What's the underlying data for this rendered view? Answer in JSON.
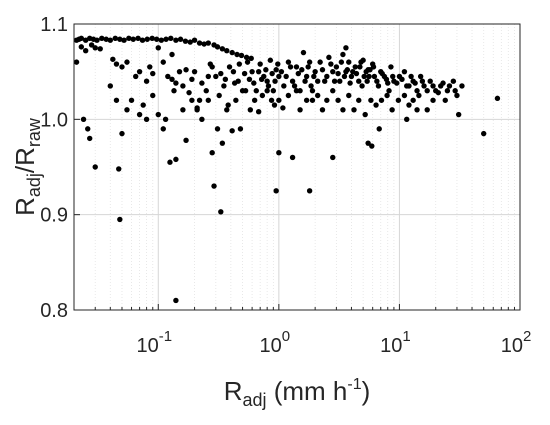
{
  "chart_data": {
    "type": "scatter",
    "title": "",
    "xlabel": {
      "base": "R",
      "sub": "adj",
      "rest": " (mm h",
      "sup": "-1",
      "close": ")"
    },
    "ylabel": {
      "num": "R",
      "num_sub": "adj",
      "slash": "/R",
      "den_sub": "raw"
    },
    "x_scale": "log",
    "xlim": [
      0.02,
      100
    ],
    "ylim": [
      0.8,
      1.1
    ],
    "x_ticks": [
      {
        "value": 0.1,
        "base": "10",
        "exp": "-1"
      },
      {
        "value": 1,
        "base": "10",
        "exp": "0"
      },
      {
        "value": 10,
        "base": "10",
        "exp": "1"
      },
      {
        "value": 100,
        "base": "10",
        "exp": "2"
      }
    ],
    "y_ticks": [
      {
        "value": 0.8,
        "label": "0.8"
      },
      {
        "value": 0.9,
        "label": "0.9"
      },
      {
        "value": 1.0,
        "label": "1.0"
      },
      {
        "value": 1.1,
        "label": "1.1"
      }
    ],
    "grid": true,
    "marker_color": "#000000",
    "points": [
      [
        0.021,
        1.083
      ],
      [
        0.022,
        1.084
      ],
      [
        0.023,
        1.085
      ],
      [
        0.025,
        1.083
      ],
      [
        0.027,
        1.085
      ],
      [
        0.029,
        1.084
      ],
      [
        0.031,
        1.083
      ],
      [
        0.034,
        1.085
      ],
      [
        0.037,
        1.084
      ],
      [
        0.04,
        1.083
      ],
      [
        0.044,
        1.085
      ],
      [
        0.048,
        1.084
      ],
      [
        0.052,
        1.083
      ],
      [
        0.057,
        1.085
      ],
      [
        0.062,
        1.084
      ],
      [
        0.068,
        1.085
      ],
      [
        0.074,
        1.083
      ],
      [
        0.081,
        1.084
      ],
      [
        0.089,
        1.085
      ],
      [
        0.097,
        1.084
      ],
      [
        0.106,
        1.083
      ],
      [
        0.116,
        1.084
      ],
      [
        0.127,
        1.085
      ],
      [
        0.14,
        1.083
      ],
      [
        0.153,
        1.084
      ],
      [
        0.168,
        1.082
      ],
      [
        0.184,
        1.081
      ],
      [
        0.2,
        1.083
      ],
      [
        0.22,
        1.08
      ],
      [
        0.24,
        1.079
      ],
      [
        0.26,
        1.08
      ],
      [
        0.29,
        1.078
      ],
      [
        0.31,
        1.076
      ],
      [
        0.34,
        1.074
      ],
      [
        0.37,
        1.072
      ],
      [
        0.41,
        1.07
      ],
      [
        0.45,
        1.068
      ],
      [
        0.49,
        1.067
      ],
      [
        0.54,
        1.065
      ],
      [
        0.59,
        1.064
      ],
      [
        0.021,
        1.06
      ],
      [
        0.023,
        1.076
      ],
      [
        0.025,
        1.072
      ],
      [
        0.028,
        1.078
      ],
      [
        0.03,
        1.075
      ],
      [
        0.033,
        1.074
      ],
      [
        0.042,
        1.063
      ],
      [
        0.045,
        1.058
      ],
      [
        0.05,
        1.055
      ],
      [
        0.055,
        1.06
      ],
      [
        0.065,
        1.045
      ],
      [
        0.07,
        1.05
      ],
      [
        0.08,
        1.04
      ],
      [
        0.085,
        1.055
      ],
      [
        0.09,
        1.048
      ],
      [
        0.1,
        1.075
      ],
      [
        0.11,
        1.06
      ],
      [
        0.12,
        1.045
      ],
      [
        0.13,
        1.068
      ],
      [
        0.15,
        1.05
      ],
      [
        0.16,
        1.035
      ],
      [
        0.18,
        1.028
      ],
      [
        0.2,
        1.05
      ],
      [
        0.21,
        1.012
      ],
      [
        0.22,
        1.02
      ],
      [
        0.25,
        1.03
      ],
      [
        0.27,
        1.058
      ],
      [
        0.3,
        1.045
      ],
      [
        0.32,
        1.025
      ],
      [
        0.35,
        1.035
      ],
      [
        0.38,
        1.015
      ],
      [
        0.42,
        1.05
      ],
      [
        0.46,
        1.04
      ],
      [
        0.5,
        1.03
      ],
      [
        0.55,
        1.06
      ],
      [
        0.6,
        1.05
      ],
      [
        0.65,
        1.03
      ],
      [
        0.7,
        1.058
      ],
      [
        0.75,
        1.045
      ],
      [
        0.8,
        1.04
      ],
      [
        0.85,
        1.062
      ],
      [
        0.9,
        1.03
      ],
      [
        0.95,
        1.052
      ],
      [
        1.0,
        1.045
      ],
      [
        1.1,
        1.035
      ],
      [
        1.2,
        1.06
      ],
      [
        1.3,
        1.04
      ],
      [
        1.4,
        1.055
      ],
      [
        1.5,
        1.03
      ],
      [
        1.6,
        1.07
      ],
      [
        1.7,
        1.045
      ],
      [
        1.8,
        1.06
      ],
      [
        1.9,
        1.02
      ],
      [
        2.0,
        1.05
      ],
      [
        2.2,
        1.06
      ],
      [
        2.4,
        1.04
      ],
      [
        2.6,
        1.065
      ],
      [
        2.8,
        1.05
      ],
      [
        3.0,
        1.055
      ],
      [
        3.2,
        1.04
      ],
      [
        3.4,
        1.068
      ],
      [
        3.6,
        1.05
      ],
      [
        3.8,
        1.06
      ],
      [
        4.0,
        1.045
      ],
      [
        4.3,
        1.055
      ],
      [
        4.6,
        1.04
      ],
      [
        5.0,
        1.062
      ],
      [
        5.3,
        1.05
      ],
      [
        5.6,
        1.045
      ],
      [
        6.0,
        1.058
      ],
      [
        6.5,
        1.04
      ],
      [
        7.0,
        1.05
      ],
      [
        7.5,
        1.045
      ],
      [
        8.0,
        1.038
      ],
      [
        8.5,
        1.055
      ],
      [
        9.0,
        1.04
      ],
      [
        10,
        1.045
      ],
      [
        11,
        1.05
      ],
      [
        12,
        1.035
      ],
      [
        13,
        1.04
      ],
      [
        14,
        1.03
      ],
      [
        15,
        1.045
      ],
      [
        16,
        1.035
      ],
      [
        18,
        1.04
      ],
      [
        20,
        1.03
      ],
      [
        22,
        1.035
      ],
      [
        25,
        1.03
      ],
      [
        28,
        1.04
      ],
      [
        30,
        1.025
      ],
      [
        33,
        1.035
      ],
      [
        0.13,
        1.042
      ],
      [
        0.14,
        1.038
      ],
      [
        0.17,
        1.052
      ],
      [
        0.19,
        1.042
      ],
      [
        0.23,
        1.038
      ],
      [
        0.26,
        1.045
      ],
      [
        0.28,
        1.055
      ],
      [
        0.33,
        1.048
      ],
      [
        0.36,
        1.042
      ],
      [
        0.39,
        1.055
      ],
      [
        0.43,
        1.038
      ],
      [
        0.47,
        1.058
      ],
      [
        0.52,
        1.048
      ],
      [
        0.57,
        1.042
      ],
      [
        0.62,
        1.038
      ],
      [
        0.68,
        1.05
      ],
      [
        0.72,
        1.042
      ],
      [
        0.78,
        1.052
      ],
      [
        0.82,
        1.035
      ],
      [
        0.88,
        1.048
      ],
      [
        0.93,
        1.04
      ],
      [
        0.98,
        1.058
      ],
      [
        1.05,
        1.05
      ],
      [
        1.15,
        1.045
      ],
      [
        1.25,
        1.055
      ],
      [
        1.35,
        1.035
      ],
      [
        1.45,
        1.048
      ],
      [
        1.55,
        1.052
      ],
      [
        1.65,
        1.04
      ],
      [
        1.75,
        1.055
      ],
      [
        1.85,
        1.035
      ],
      [
        1.95,
        1.045
      ],
      [
        2.1,
        1.04
      ],
      [
        2.3,
        1.052
      ],
      [
        2.5,
        1.045
      ],
      [
        2.7,
        1.058
      ],
      [
        2.9,
        1.04
      ],
      [
        3.1,
        1.048
      ],
      [
        3.3,
        1.06
      ],
      [
        3.5,
        1.045
      ],
      [
        3.7,
        1.052
      ],
      [
        3.9,
        1.038
      ],
      [
        4.1,
        1.05
      ],
      [
        4.4,
        1.048
      ],
      [
        4.7,
        1.055
      ],
      [
        4.9,
        1.035
      ],
      [
        5.1,
        1.045
      ],
      [
        5.4,
        1.04
      ],
      [
        5.7,
        1.052
      ],
      [
        6.2,
        1.045
      ],
      [
        6.7,
        1.035
      ],
      [
        7.2,
        1.048
      ],
      [
        7.8,
        1.042
      ],
      [
        8.2,
        1.03
      ],
      [
        8.8,
        1.045
      ],
      [
        9.5,
        1.038
      ],
      [
        10.5,
        1.042
      ],
      [
        11.5,
        1.035
      ],
      [
        12.5,
        1.045
      ],
      [
        13.5,
        1.038
      ],
      [
        14.5,
        1.025
      ],
      [
        15.5,
        1.04
      ],
      [
        17,
        1.03
      ],
      [
        19,
        1.035
      ],
      [
        21,
        1.028
      ],
      [
        23,
        1.038
      ],
      [
        26,
        1.035
      ],
      [
        29,
        1.03
      ],
      [
        0.024,
        1.0
      ],
      [
        0.026,
        0.99
      ],
      [
        0.027,
        0.98
      ],
      [
        0.03,
        0.95
      ],
      [
        0.04,
        1.035
      ],
      [
        0.045,
        1.02
      ],
      [
        0.047,
        0.948
      ],
      [
        0.05,
        0.985
      ],
      [
        0.055,
        1.01
      ],
      [
        0.06,
        1.02
      ],
      [
        0.07,
        1.005
      ],
      [
        0.075,
        1.015
      ],
      [
        0.08,
        1.0
      ],
      [
        0.09,
        1.025
      ],
      [
        0.1,
        1.005
      ],
      [
        0.11,
        0.99
      ],
      [
        0.115,
        1.0
      ],
      [
        0.125,
        0.955
      ],
      [
        0.135,
        1.03
      ],
      [
        0.14,
        0.958
      ],
      [
        0.16,
        1.01
      ],
      [
        0.17,
        0.978
      ],
      [
        0.19,
        1.02
      ],
      [
        0.21,
        1.01
      ],
      [
        0.23,
        1.0
      ],
      [
        0.26,
        1.02
      ],
      [
        0.28,
        0.965
      ],
      [
        0.31,
        0.99
      ],
      [
        0.34,
        0.975
      ],
      [
        0.37,
        1.01
      ],
      [
        0.41,
        0.988
      ],
      [
        0.44,
        1.02
      ],
      [
        0.48,
        0.99
      ],
      [
        0.53,
        1.03
      ],
      [
        0.58,
        1.01
      ],
      [
        0.63,
        1.02
      ],
      [
        0.68,
        1.008
      ],
      [
        0.73,
        1.025
      ],
      [
        0.8,
        1.03
      ],
      [
        0.87,
        1.02
      ],
      [
        0.92,
        1.015
      ],
      [
        1.0,
        1.02
      ],
      [
        1.08,
        1.012
      ],
      [
        1.2,
        1.025
      ],
      [
        1.3,
        0.96
      ],
      [
        1.4,
        1.03
      ],
      [
        1.5,
        1.01
      ],
      [
        1.7,
        1.02
      ],
      [
        1.9,
        1.03
      ],
      [
        2.1,
        1.025
      ],
      [
        2.3,
        1.01
      ],
      [
        2.5,
        1.02
      ],
      [
        2.8,
        1.03
      ],
      [
        3.1,
        1.02
      ],
      [
        3.4,
        1.01
      ],
      [
        3.8,
        1.025
      ],
      [
        4.2,
        1.01
      ],
      [
        4.6,
        1.02
      ],
      [
        5.2,
        1.005
      ],
      [
        5.8,
        1.02
      ],
      [
        6.4,
        1.015
      ],
      [
        7.1,
        1.02
      ],
      [
        7.9,
        1.025
      ],
      [
        8.7,
        1.01
      ],
      [
        9.8,
        1.02
      ],
      [
        11,
        1.025
      ],
      [
        12,
        1.015
      ],
      [
        13,
        1.02
      ],
      [
        17,
        1.01
      ],
      [
        19,
        1.02
      ],
      [
        24,
        1.02
      ],
      [
        31,
        1.005
      ],
      [
        0.048,
        0.895
      ],
      [
        0.14,
        0.81
      ],
      [
        0.29,
        0.93
      ],
      [
        0.33,
        0.903
      ],
      [
        0.95,
        0.925
      ],
      [
        1.0,
        0.965
      ],
      [
        1.8,
        0.925
      ],
      [
        2.8,
        0.96
      ],
      [
        5.5,
        0.975
      ],
      [
        5.9,
        0.972
      ],
      [
        6.8,
        0.99
      ],
      [
        11.5,
        1.0
      ],
      [
        14,
        1.01
      ],
      [
        50,
        0.985
      ],
      [
        65,
        1.022
      ],
      [
        3.6,
        1.075
      ],
      [
        5.5,
        1.052
      ],
      [
        6.1,
        1.055
      ],
      [
        4.8,
        1.06
      ]
    ]
  }
}
